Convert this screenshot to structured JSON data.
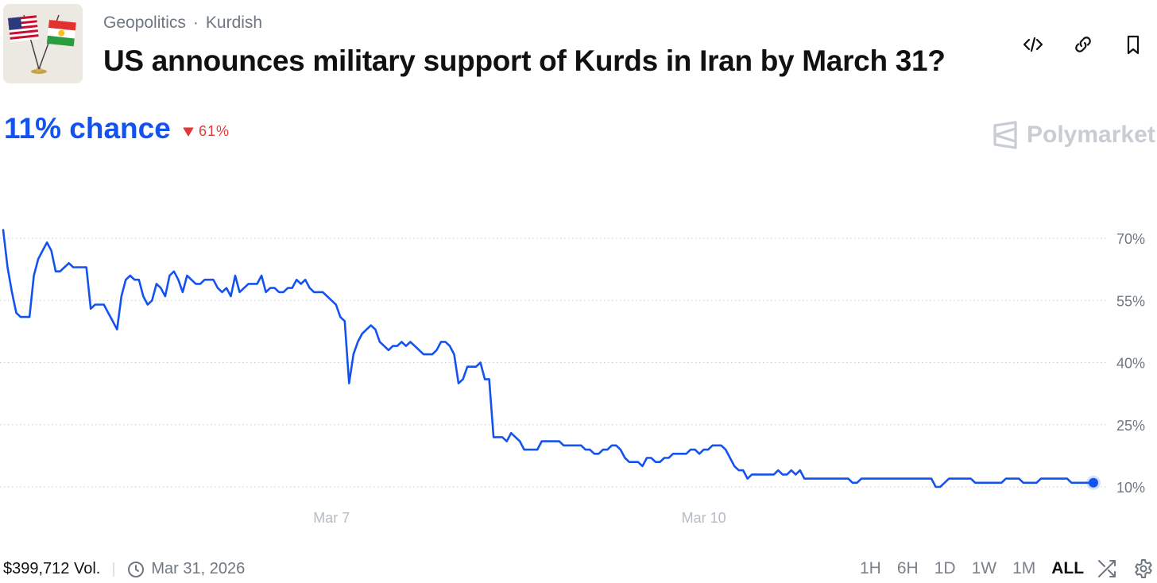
{
  "header": {
    "category": "Geopolitics",
    "separator": "·",
    "tag": "Kurdish",
    "title": "US announces military support of Kurds in Iran by March 31?",
    "actions": [
      "embed-icon",
      "link-icon",
      "bookmark-icon"
    ]
  },
  "market": {
    "chance_text": "11% chance",
    "change_text": "61%",
    "change_direction": "down",
    "brand": "Polymarket"
  },
  "colors": {
    "accent": "#1452f0",
    "negative": "#e23838",
    "muted": "#6f7781",
    "brand": "#c9cdd3"
  },
  "chart_data": {
    "type": "line",
    "series": [
      {
        "values": [
          72,
          63,
          57,
          52,
          51,
          51,
          51,
          61,
          65,
          67,
          69,
          67,
          62,
          62,
          63,
          64,
          63,
          63,
          63,
          63,
          53,
          54,
          54,
          54,
          52,
          50,
          48,
          56,
          60,
          61,
          60,
          60,
          56,
          54,
          55,
          59,
          58,
          56,
          61,
          62,
          60,
          57,
          61,
          60,
          59,
          59,
          60,
          60,
          60,
          58,
          57,
          58,
          56,
          61,
          57,
          58,
          59,
          59,
          59,
          61,
          57,
          58,
          58,
          57,
          57,
          58,
          58,
          60,
          59,
          60,
          58,
          57,
          57,
          57,
          56,
          55,
          54,
          51,
          50,
          35,
          42,
          45,
          47,
          48,
          49,
          48,
          45,
          44,
          43,
          44,
          44,
          45,
          44,
          45,
          44,
          43,
          42,
          42,
          42,
          43,
          45,
          45,
          44,
          42,
          35,
          36,
          39,
          39,
          39,
          40,
          36,
          36,
          22,
          22,
          22,
          21,
          23,
          22,
          21,
          19,
          19,
          19,
          19,
          21,
          21,
          21,
          21,
          21,
          20,
          20,
          20,
          20,
          20,
          19,
          19,
          18,
          18,
          19,
          19,
          20,
          20,
          19,
          17,
          16,
          16,
          16,
          15,
          17,
          17,
          16,
          16,
          17,
          17,
          18,
          18,
          18,
          18,
          19,
          19,
          18,
          19,
          19,
          20,
          20,
          20,
          19,
          17,
          15,
          14,
          14,
          12,
          13,
          13,
          13,
          13,
          13,
          13,
          14,
          13,
          13,
          14,
          13,
          14,
          12,
          12,
          12,
          12,
          12,
          12,
          12,
          12,
          12,
          12,
          12,
          11,
          11,
          12,
          12,
          12,
          12,
          12,
          12,
          12,
          12,
          12,
          12,
          12,
          12,
          12,
          12,
          12,
          12,
          12,
          10,
          10,
          11,
          12,
          12,
          12,
          12,
          12,
          12,
          11,
          11,
          11,
          11,
          11,
          11,
          11,
          12,
          12,
          12,
          12,
          11,
          11,
          11,
          11,
          12,
          12,
          12,
          12,
          12,
          12,
          12,
          11,
          11,
          11,
          11,
          11,
          11
        ]
      }
    ],
    "x_tick_labels": [
      "Mar 7",
      "Mar 10"
    ],
    "x_tick_index": [
      75,
      160
    ],
    "y_ticks": [
      70,
      55,
      40,
      25,
      10
    ],
    "y_tick_labels": [
      "70%",
      "55%",
      "40%",
      "25%",
      "10%"
    ],
    "ylim": [
      0,
      72
    ],
    "grid": true,
    "grid_style": "dotted",
    "line_color": "#1452f0"
  },
  "footer": {
    "volume": "$399,712 Vol.",
    "end_date": "Mar 31, 2026",
    "ranges": [
      "1H",
      "6H",
      "1D",
      "1W",
      "1M",
      "ALL"
    ],
    "active_range": "ALL"
  }
}
